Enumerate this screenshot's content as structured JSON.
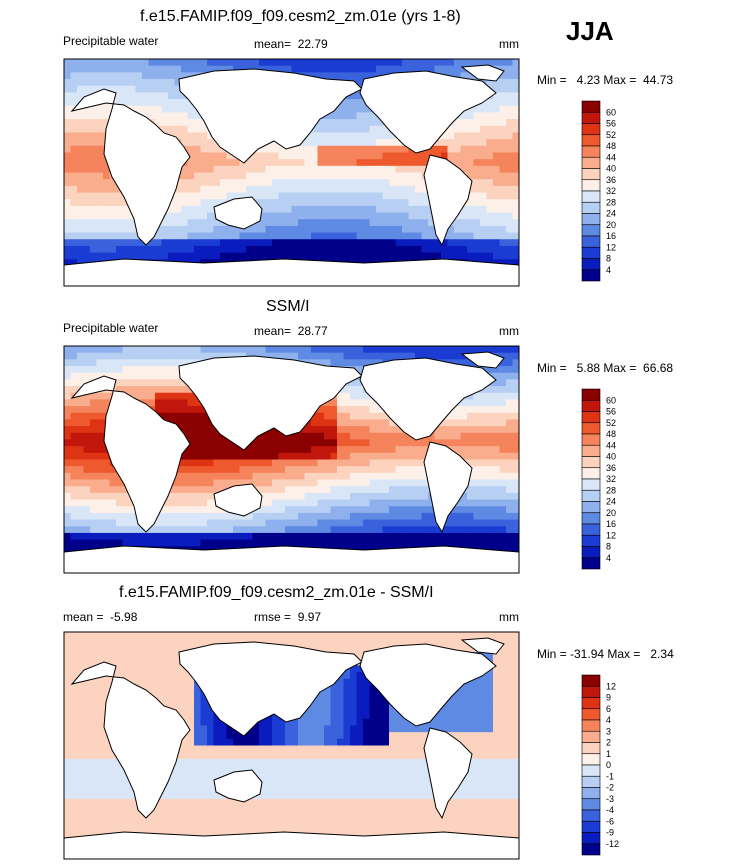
{
  "season": "JJA",
  "chart_data": [
    {
      "type": "heatmap",
      "title": "f.e15.FAMIP.f09_f09.cesm2_zm.01e (yrs 1-8)",
      "left_label": "Precipitable water",
      "stat_label": "mean=",
      "stat_value": "22.79",
      "units": "mm",
      "range_text": "Min =   4.23 Max =  44.73",
      "min": 4.23,
      "max": 44.73,
      "colorbar_ticks": [
        "60",
        "56",
        "52",
        "48",
        "44",
        "40",
        "36",
        "32",
        "28",
        "24",
        "20",
        "16",
        "12",
        "8",
        "4"
      ],
      "colorbar_colors": [
        "#8b0000",
        "#c0160c",
        "#de3414",
        "#ee5a2e",
        "#f5845c",
        "#f9ad8d",
        "#fbd3bf",
        "#fdf0e8",
        "#d9e6f8",
        "#b7cff2",
        "#8eb0ec",
        "#5e8ae4",
        "#3a62dc",
        "#1a3cd2",
        "#0a1cbe",
        "#00008a"
      ],
      "field": "model"
    },
    {
      "type": "heatmap",
      "title": "SSM/I",
      "left_label": "Precipitable water",
      "stat_label": "mean=",
      "stat_value": "28.77",
      "units": "mm",
      "range_text": "Min =   5.88 Max =  66.68",
      "min": 5.88,
      "max": 66.68,
      "colorbar_ticks": [
        "60",
        "56",
        "52",
        "48",
        "44",
        "40",
        "36",
        "32",
        "28",
        "24",
        "20",
        "16",
        "12",
        "8",
        "4"
      ],
      "colorbar_colors": [
        "#8b0000",
        "#c0160c",
        "#de3414",
        "#ee5a2e",
        "#f5845c",
        "#f9ad8d",
        "#fbd3bf",
        "#fdf0e8",
        "#d9e6f8",
        "#b7cff2",
        "#8eb0ec",
        "#5e8ae4",
        "#3a62dc",
        "#1a3cd2",
        "#0a1cbe",
        "#00008a"
      ],
      "field": "obs"
    },
    {
      "type": "heatmap",
      "title": "f.e15.FAMIP.f09_f09.cesm2_zm.01e - SSM/I",
      "left_label": "mean =",
      "left_value": "-5.98",
      "stat_label": "rmse =",
      "stat_value": "9.97",
      "units": "mm",
      "range_text": "Min = -31.94 Max =   2.34",
      "min": -31.94,
      "max": 2.34,
      "colorbar_ticks": [
        "12",
        "9",
        "6",
        "4",
        "3",
        "2",
        "1",
        "0",
        "-1",
        "-2",
        "-3",
        "-4",
        "-6",
        "-9",
        "-12"
      ],
      "colorbar_colors": [
        "#8b0000",
        "#c0160c",
        "#de3414",
        "#ee5a2e",
        "#f5845c",
        "#f9ad8d",
        "#fbd3bf",
        "#fdf0e8",
        "#d9e6f8",
        "#b7cff2",
        "#8eb0ec",
        "#5e8ae4",
        "#3a62dc",
        "#1a3cd2",
        "#0a1cbe",
        "#00008a"
      ],
      "field": "diff"
    }
  ]
}
